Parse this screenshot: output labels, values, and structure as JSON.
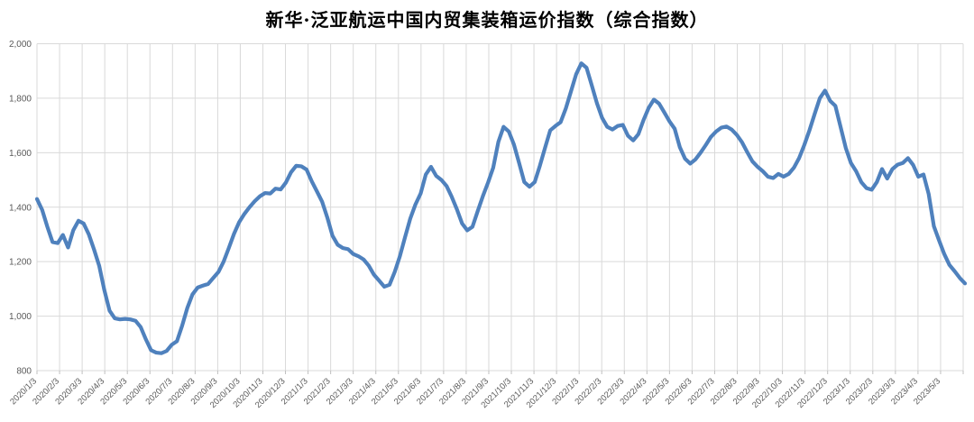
{
  "chart_data": {
    "type": "line",
    "title": "新华·泛亚航运中国内贸集装箱运价指数（综合指数）",
    "frequency": "weekly",
    "x_first_label": "2020/1/3",
    "x_last_label": "2023/5/3",
    "x_tick_labels": [
      "2020/1/3",
      "2020/2/3",
      "2020/3/3",
      "2020/4/3",
      "2020/5/3",
      "2020/6/3",
      "2020/7/3",
      "2020/8/3",
      "2020/9/3",
      "2020/10/3",
      "2020/11/3",
      "2020/12/3",
      "2021/1/3",
      "2021/2/3",
      "2021/3/3",
      "2021/4/3",
      "2021/5/3",
      "2021/6/3",
      "2021/7/3",
      "2021/8/3",
      "2021/9/3",
      "2021/10/3",
      "2021/11/3",
      "2021/12/3",
      "2022/1/3",
      "2022/2/3",
      "2022/3/3",
      "2022/4/3",
      "2022/5/3",
      "2022/6/3",
      "2022/7/3",
      "2022/8/3",
      "2022/9/3",
      "2022/10/3",
      "2022/11/3",
      "2022/12/3",
      "2023/1/3",
      "2023/2/3",
      "2023/3/3",
      "2023/4/3",
      "2023/5/3"
    ],
    "y_ticks": [
      800,
      1000,
      1200,
      1400,
      1600,
      1800,
      2000
    ],
    "y_tick_labels": [
      "800",
      "1,000",
      "1,200",
      "1,400",
      "1,600",
      "1,800",
      "2,000"
    ],
    "ylim": [
      800,
      2000
    ],
    "grid": true,
    "legend": "none",
    "line_color": "#4F81BD",
    "gridline_color": "#D9D9D9",
    "label_color": "#595959",
    "series": [
      {
        "name": "综合指数",
        "values": [
          1430,
          1390,
          1328,
          1272,
          1268,
          1298,
          1252,
          1315,
          1350,
          1340,
          1300,
          1245,
          1185,
          1095,
          1020,
          992,
          988,
          990,
          988,
          983,
          960,
          915,
          875,
          866,
          864,
          872,
          895,
          908,
          965,
          1030,
          1080,
          1105,
          1112,
          1118,
          1140,
          1162,
          1200,
          1250,
          1302,
          1345,
          1375,
          1400,
          1422,
          1440,
          1452,
          1450,
          1468,
          1465,
          1490,
          1528,
          1552,
          1550,
          1538,
          1495,
          1458,
          1420,
          1362,
          1295,
          1262,
          1250,
          1246,
          1228,
          1220,
          1208,
          1185,
          1152,
          1130,
          1108,
          1115,
          1162,
          1220,
          1290,
          1358,
          1410,
          1450,
          1520,
          1548,
          1515,
          1500,
          1478,
          1438,
          1392,
          1340,
          1315,
          1328,
          1385,
          1440,
          1490,
          1545,
          1640,
          1695,
          1678,
          1630,
          1562,
          1492,
          1475,
          1492,
          1552,
          1618,
          1682,
          1698,
          1712,
          1762,
          1825,
          1888,
          1928,
          1912,
          1848,
          1782,
          1728,
          1695,
          1685,
          1698,
          1702,
          1662,
          1645,
          1668,
          1720,
          1765,
          1795,
          1780,
          1748,
          1715,
          1688,
          1620,
          1578,
          1560,
          1575,
          1600,
          1628,
          1658,
          1678,
          1692,
          1696,
          1685,
          1665,
          1638,
          1602,
          1568,
          1548,
          1532,
          1512,
          1507,
          1522,
          1512,
          1522,
          1545,
          1580,
          1628,
          1682,
          1742,
          1800,
          1828,
          1790,
          1772,
          1695,
          1618,
          1562,
          1532,
          1492,
          1470,
          1464,
          1492,
          1540,
          1505,
          1540,
          1556,
          1562,
          1580,
          1555,
          1512,
          1520,
          1448,
          1330,
          1278,
          1228,
          1188,
          1165,
          1140,
          1120
        ]
      }
    ]
  }
}
